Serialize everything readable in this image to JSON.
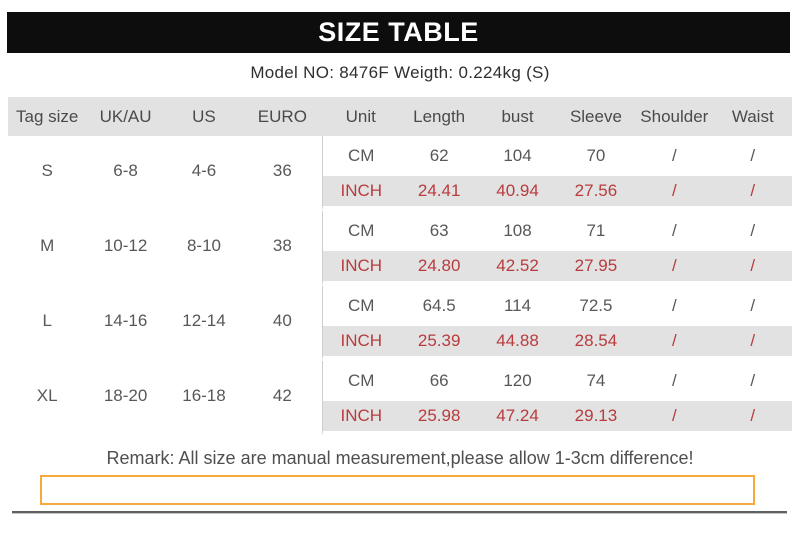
{
  "title": "SIZE TABLE",
  "model_line": "Model NO: 8476F Weigth: 0.224kg (S)",
  "colors": {
    "title_bar_bg": "#0d0d0d",
    "row_gray": "#e2e2e2",
    "inch_red": "#b93b3d",
    "highlight_border_orange": "#f7a93c"
  },
  "table": {
    "headers": [
      "Tag size",
      "UK/AU",
      "US",
      "EURO",
      "Unit",
      "Length",
      "bust",
      "Sleeve",
      "Shoulder",
      "Waist"
    ],
    "groups": [
      {
        "tag": "S",
        "uk_au": "6-8",
        "us": "4-6",
        "euro": "36",
        "cm": {
          "unit": "CM",
          "length": "62",
          "bust": "104",
          "sleeve": "70",
          "shoulder": "/",
          "waist": "/"
        },
        "inch": {
          "unit": "INCH",
          "length": "24.41",
          "bust": "40.94",
          "sleeve": "27.56",
          "shoulder": "/",
          "waist": "/"
        }
      },
      {
        "tag": "M",
        "uk_au": "10-12",
        "us": "8-10",
        "euro": "38",
        "cm": {
          "unit": "CM",
          "length": "63",
          "bust": "108",
          "sleeve": "71",
          "shoulder": "/",
          "waist": "/"
        },
        "inch": {
          "unit": "INCH",
          "length": "24.80",
          "bust": "42.52",
          "sleeve": "27.95",
          "shoulder": "/",
          "waist": "/"
        }
      },
      {
        "tag": "L",
        "uk_au": "14-16",
        "us": "12-14",
        "euro": "40",
        "cm": {
          "unit": "CM",
          "length": "64.5",
          "bust": "114",
          "sleeve": "72.5",
          "shoulder": "/",
          "waist": "/"
        },
        "inch": {
          "unit": "INCH",
          "length": "25.39",
          "bust": "44.88",
          "sleeve": "28.54",
          "shoulder": "/",
          "waist": "/"
        }
      },
      {
        "tag": "XL",
        "uk_au": "18-20",
        "us": "16-18",
        "euro": "42",
        "cm": {
          "unit": "CM",
          "length": "66",
          "bust": "120",
          "sleeve": "74",
          "shoulder": "/",
          "waist": "/"
        },
        "inch": {
          "unit": "INCH",
          "length": "25.98",
          "bust": "47.24",
          "sleeve": "29.13",
          "shoulder": "/",
          "waist": "/"
        }
      }
    ]
  },
  "remark": "Remark: All size are manual measurement,please allow 1-3cm difference!"
}
